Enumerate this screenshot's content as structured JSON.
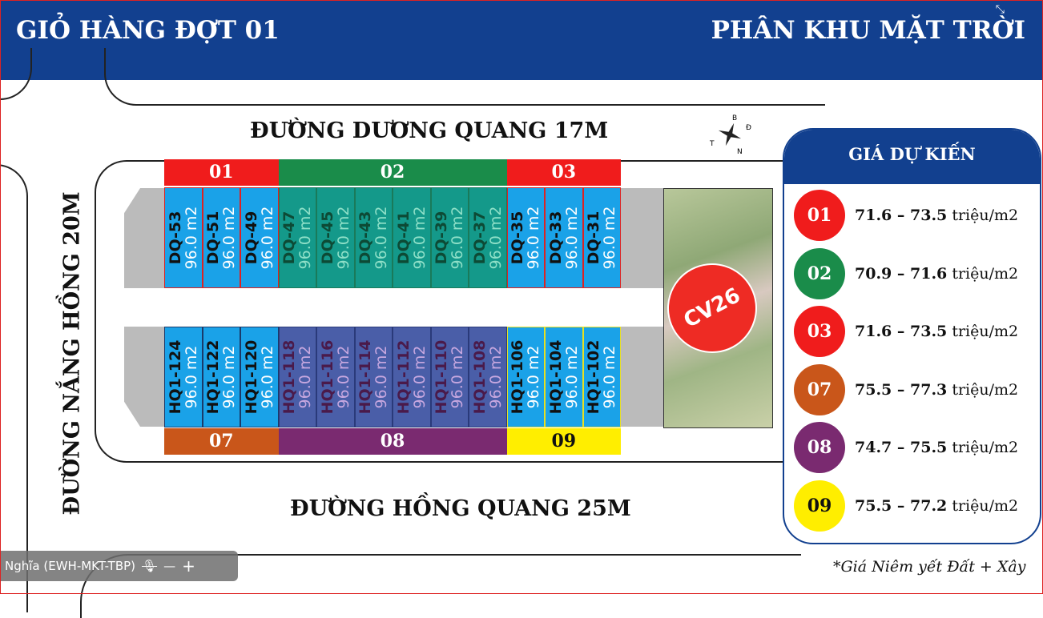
{
  "header": {
    "left_title": "GIỎ HÀNG ĐỢT 01",
    "right_title": "PHÂN KHU MẶT TRỜI"
  },
  "roads": {
    "top": "ĐƯỜNG DƯƠNG QUANG 17M",
    "bottom": "ĐƯỜNG HỒNG QUANG 25M",
    "left": "ĐƯỜNG NẮNG HỒNG 20M"
  },
  "compass": {
    "n": "B",
    "s": "N",
    "e": "Đ",
    "w": "T"
  },
  "park_label": "CV26",
  "top_zones": [
    {
      "label": "01",
      "color": "#f01c1c"
    },
    {
      "label": "02",
      "color": "#1a8c4a"
    },
    {
      "label": "03",
      "color": "#f01c1c"
    }
  ],
  "bottom_zones": [
    {
      "label": "07",
      "color": "#c9561a"
    },
    {
      "label": "08",
      "color": "#7a2a70"
    },
    {
      "label": "09",
      "color": "#ffee00"
    }
  ],
  "top_lots": [
    {
      "code": "DQ-53",
      "area": "96.0 m2",
      "zone": "01"
    },
    {
      "code": "DQ-51",
      "area": "96.0 m2",
      "zone": "01"
    },
    {
      "code": "DQ-49",
      "area": "96.0 m2",
      "zone": "01"
    },
    {
      "code": "DQ-47",
      "area": "96.0 m2",
      "zone": "02"
    },
    {
      "code": "DQ-45",
      "area": "96.0 m2",
      "zone": "02"
    },
    {
      "code": "DQ-43",
      "area": "96.0 m2",
      "zone": "02"
    },
    {
      "code": "DQ-41",
      "area": "96.0 m2",
      "zone": "02"
    },
    {
      "code": "DQ-39",
      "area": "96.0 m2",
      "zone": "02"
    },
    {
      "code": "DQ-37",
      "area": "96.0 m2",
      "zone": "02"
    },
    {
      "code": "DQ-35",
      "area": "96.0 m2",
      "zone": "03"
    },
    {
      "code": "DQ-33",
      "area": "96.0 m2",
      "zone": "03"
    },
    {
      "code": "DQ-31",
      "area": "96.0 m2",
      "zone": "03"
    }
  ],
  "bottom_lots": [
    {
      "code": "HQ1-124",
      "area": "96.0 m2",
      "zone": "07"
    },
    {
      "code": "HQ1-122",
      "area": "96.0 m2",
      "zone": "07"
    },
    {
      "code": "HQ1-120",
      "area": "96.0 m2",
      "zone": "07"
    },
    {
      "code": "HQ1-118",
      "area": "96.0 m2",
      "zone": "08"
    },
    {
      "code": "HQ1-116",
      "area": "96.0 m2",
      "zone": "08"
    },
    {
      "code": "HQ1-114",
      "area": "96.0 m2",
      "zone": "08"
    },
    {
      "code": "HQ1-112",
      "area": "96.0 m2",
      "zone": "08"
    },
    {
      "code": "HQ1-110",
      "area": "96.0 m2",
      "zone": "08"
    },
    {
      "code": "HQ1-108",
      "area": "96.0 m2",
      "zone": "08"
    },
    {
      "code": "HQ1-106",
      "area": "96.0 m2",
      "zone": "09"
    },
    {
      "code": "HQ1-104",
      "area": "96.0 m2",
      "zone": "09"
    },
    {
      "code": "HQ1-102",
      "area": "96.0 m2",
      "zone": "09"
    }
  ],
  "prices": {
    "title": "GIÁ DỰ KIẾN",
    "rows": [
      {
        "zone": "01",
        "range": "71.6 – 73.5",
        "unit": "triệu/m2",
        "color": "#f01c1c"
      },
      {
        "zone": "02",
        "range": "70.9 – 71.6",
        "unit": "triệu/m2",
        "color": "#1a8c4a"
      },
      {
        "zone": "03",
        "range": "71.6 – 73.5",
        "unit": "triệu/m2",
        "color": "#f01c1c"
      },
      {
        "zone": "07",
        "range": "75.5 – 77.3",
        "unit": "triệu/m2",
        "color": "#c9561a"
      },
      {
        "zone": "08",
        "range": "74.7 – 75.5",
        "unit": "triệu/m2",
        "color": "#7a2a70"
      },
      {
        "zone": "09",
        "range": "75.5 – 77.2",
        "unit": "triệu/m2",
        "color": "#ffee00"
      }
    ]
  },
  "note": "*Giá Niêm yết Đất + Xây",
  "participant": {
    "name": "Nghĩa (EWH-MKT-TBP)",
    "mic": "mic-muted-icon"
  }
}
